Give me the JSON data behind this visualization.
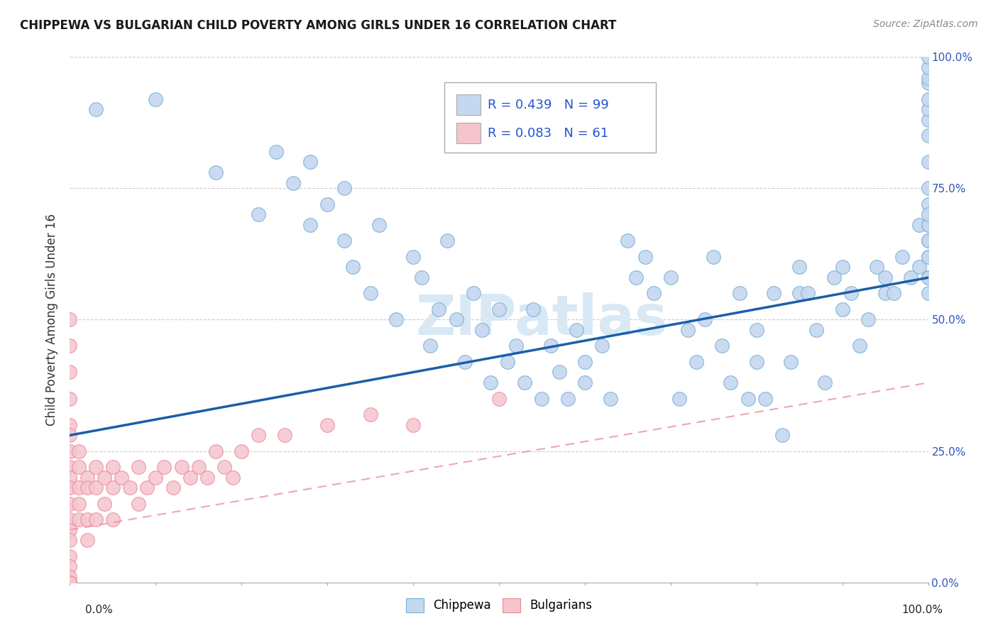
{
  "title": "CHIPPEWA VS BULGARIAN CHILD POVERTY AMONG GIRLS UNDER 16 CORRELATION CHART",
  "source": "Source: ZipAtlas.com",
  "ylabel": "Child Poverty Among Girls Under 16",
  "ytick_labels_left": [
    "",
    "25.0%",
    "50.0%",
    "75.0%",
    "100.0%"
  ],
  "ytick_labels_right": [
    "0.0%",
    "25.0%",
    "50.0%",
    "75.0%",
    "100.0%"
  ],
  "ytick_values": [
    0,
    25,
    50,
    75,
    100
  ],
  "xlim": [
    0,
    100
  ],
  "ylim": [
    0,
    100
  ],
  "chippewa_R": "0.439",
  "chippewa_N": "99",
  "bulgarian_R": "0.083",
  "bulgarian_N": "61",
  "chippewa_color": "#c5d8f0",
  "chippewa_edge_color": "#7aafd4",
  "chippewa_line_color": "#1a5fa8",
  "bulgarian_color": "#f5c5ce",
  "bulgarian_edge_color": "#e8899a",
  "bulgarian_line_color": "#e8899a",
  "watermark_color": "#d8e8f5",
  "legend_R_color": "#2255cc",
  "chippewa_x": [
    3,
    10,
    17,
    22,
    24,
    26,
    28,
    28,
    30,
    32,
    32,
    33,
    35,
    36,
    38,
    40,
    41,
    42,
    43,
    44,
    45,
    46,
    47,
    48,
    49,
    50,
    51,
    52,
    53,
    54,
    55,
    56,
    57,
    58,
    59,
    60,
    60,
    62,
    63,
    65,
    66,
    67,
    68,
    70,
    71,
    72,
    73,
    74,
    75,
    76,
    77,
    78,
    79,
    80,
    80,
    81,
    82,
    83,
    84,
    85,
    85,
    86,
    87,
    88,
    89,
    90,
    90,
    91,
    92,
    93,
    94,
    95,
    95,
    96,
    97,
    98,
    99,
    99,
    100,
    100,
    100,
    100,
    100,
    100,
    100,
    100,
    100,
    100,
    100,
    100,
    100,
    100,
    100,
    100,
    100,
    100,
    100,
    100,
    100
  ],
  "chippewa_y": [
    90,
    92,
    78,
    70,
    82,
    76,
    68,
    80,
    72,
    65,
    75,
    60,
    55,
    68,
    50,
    62,
    58,
    45,
    52,
    65,
    50,
    42,
    55,
    48,
    38,
    52,
    42,
    45,
    38,
    52,
    35,
    45,
    40,
    35,
    48,
    42,
    38,
    45,
    35,
    65,
    58,
    62,
    55,
    58,
    35,
    48,
    42,
    50,
    62,
    45,
    38,
    55,
    35,
    42,
    48,
    35,
    55,
    28,
    42,
    60,
    55,
    55,
    48,
    38,
    58,
    60,
    52,
    55,
    45,
    50,
    60,
    55,
    58,
    55,
    62,
    58,
    68,
    60,
    55,
    62,
    58,
    65,
    68,
    72,
    75,
    68,
    65,
    62,
    58,
    70,
    80,
    85,
    88,
    90,
    92,
    95,
    96,
    98,
    100
  ],
  "bulgarian_x": [
    0,
    0,
    0,
    0,
    0,
    0,
    0,
    0,
    0,
    0,
    0,
    0,
    0,
    0,
    0,
    0,
    0,
    0,
    0,
    0,
    0,
    0,
    1,
    1,
    1,
    1,
    1,
    2,
    2,
    2,
    2,
    3,
    3,
    3,
    4,
    4,
    5,
    5,
    5,
    6,
    7,
    8,
    8,
    9,
    10,
    11,
    12,
    13,
    14,
    15,
    16,
    17,
    18,
    19,
    20,
    22,
    25,
    30,
    35,
    40,
    50
  ],
  "bulgarian_y": [
    50,
    45,
    40,
    35,
    30,
    28,
    25,
    22,
    20,
    18,
    15,
    12,
    10,
    8,
    5,
    3,
    1,
    0,
    0,
    0,
    0,
    0,
    25,
    22,
    18,
    15,
    12,
    20,
    18,
    12,
    8,
    22,
    18,
    12,
    20,
    15,
    22,
    18,
    12,
    20,
    18,
    22,
    15,
    18,
    20,
    22,
    18,
    22,
    20,
    22,
    20,
    25,
    22,
    20,
    25,
    28,
    28,
    30,
    32,
    30,
    35
  ]
}
